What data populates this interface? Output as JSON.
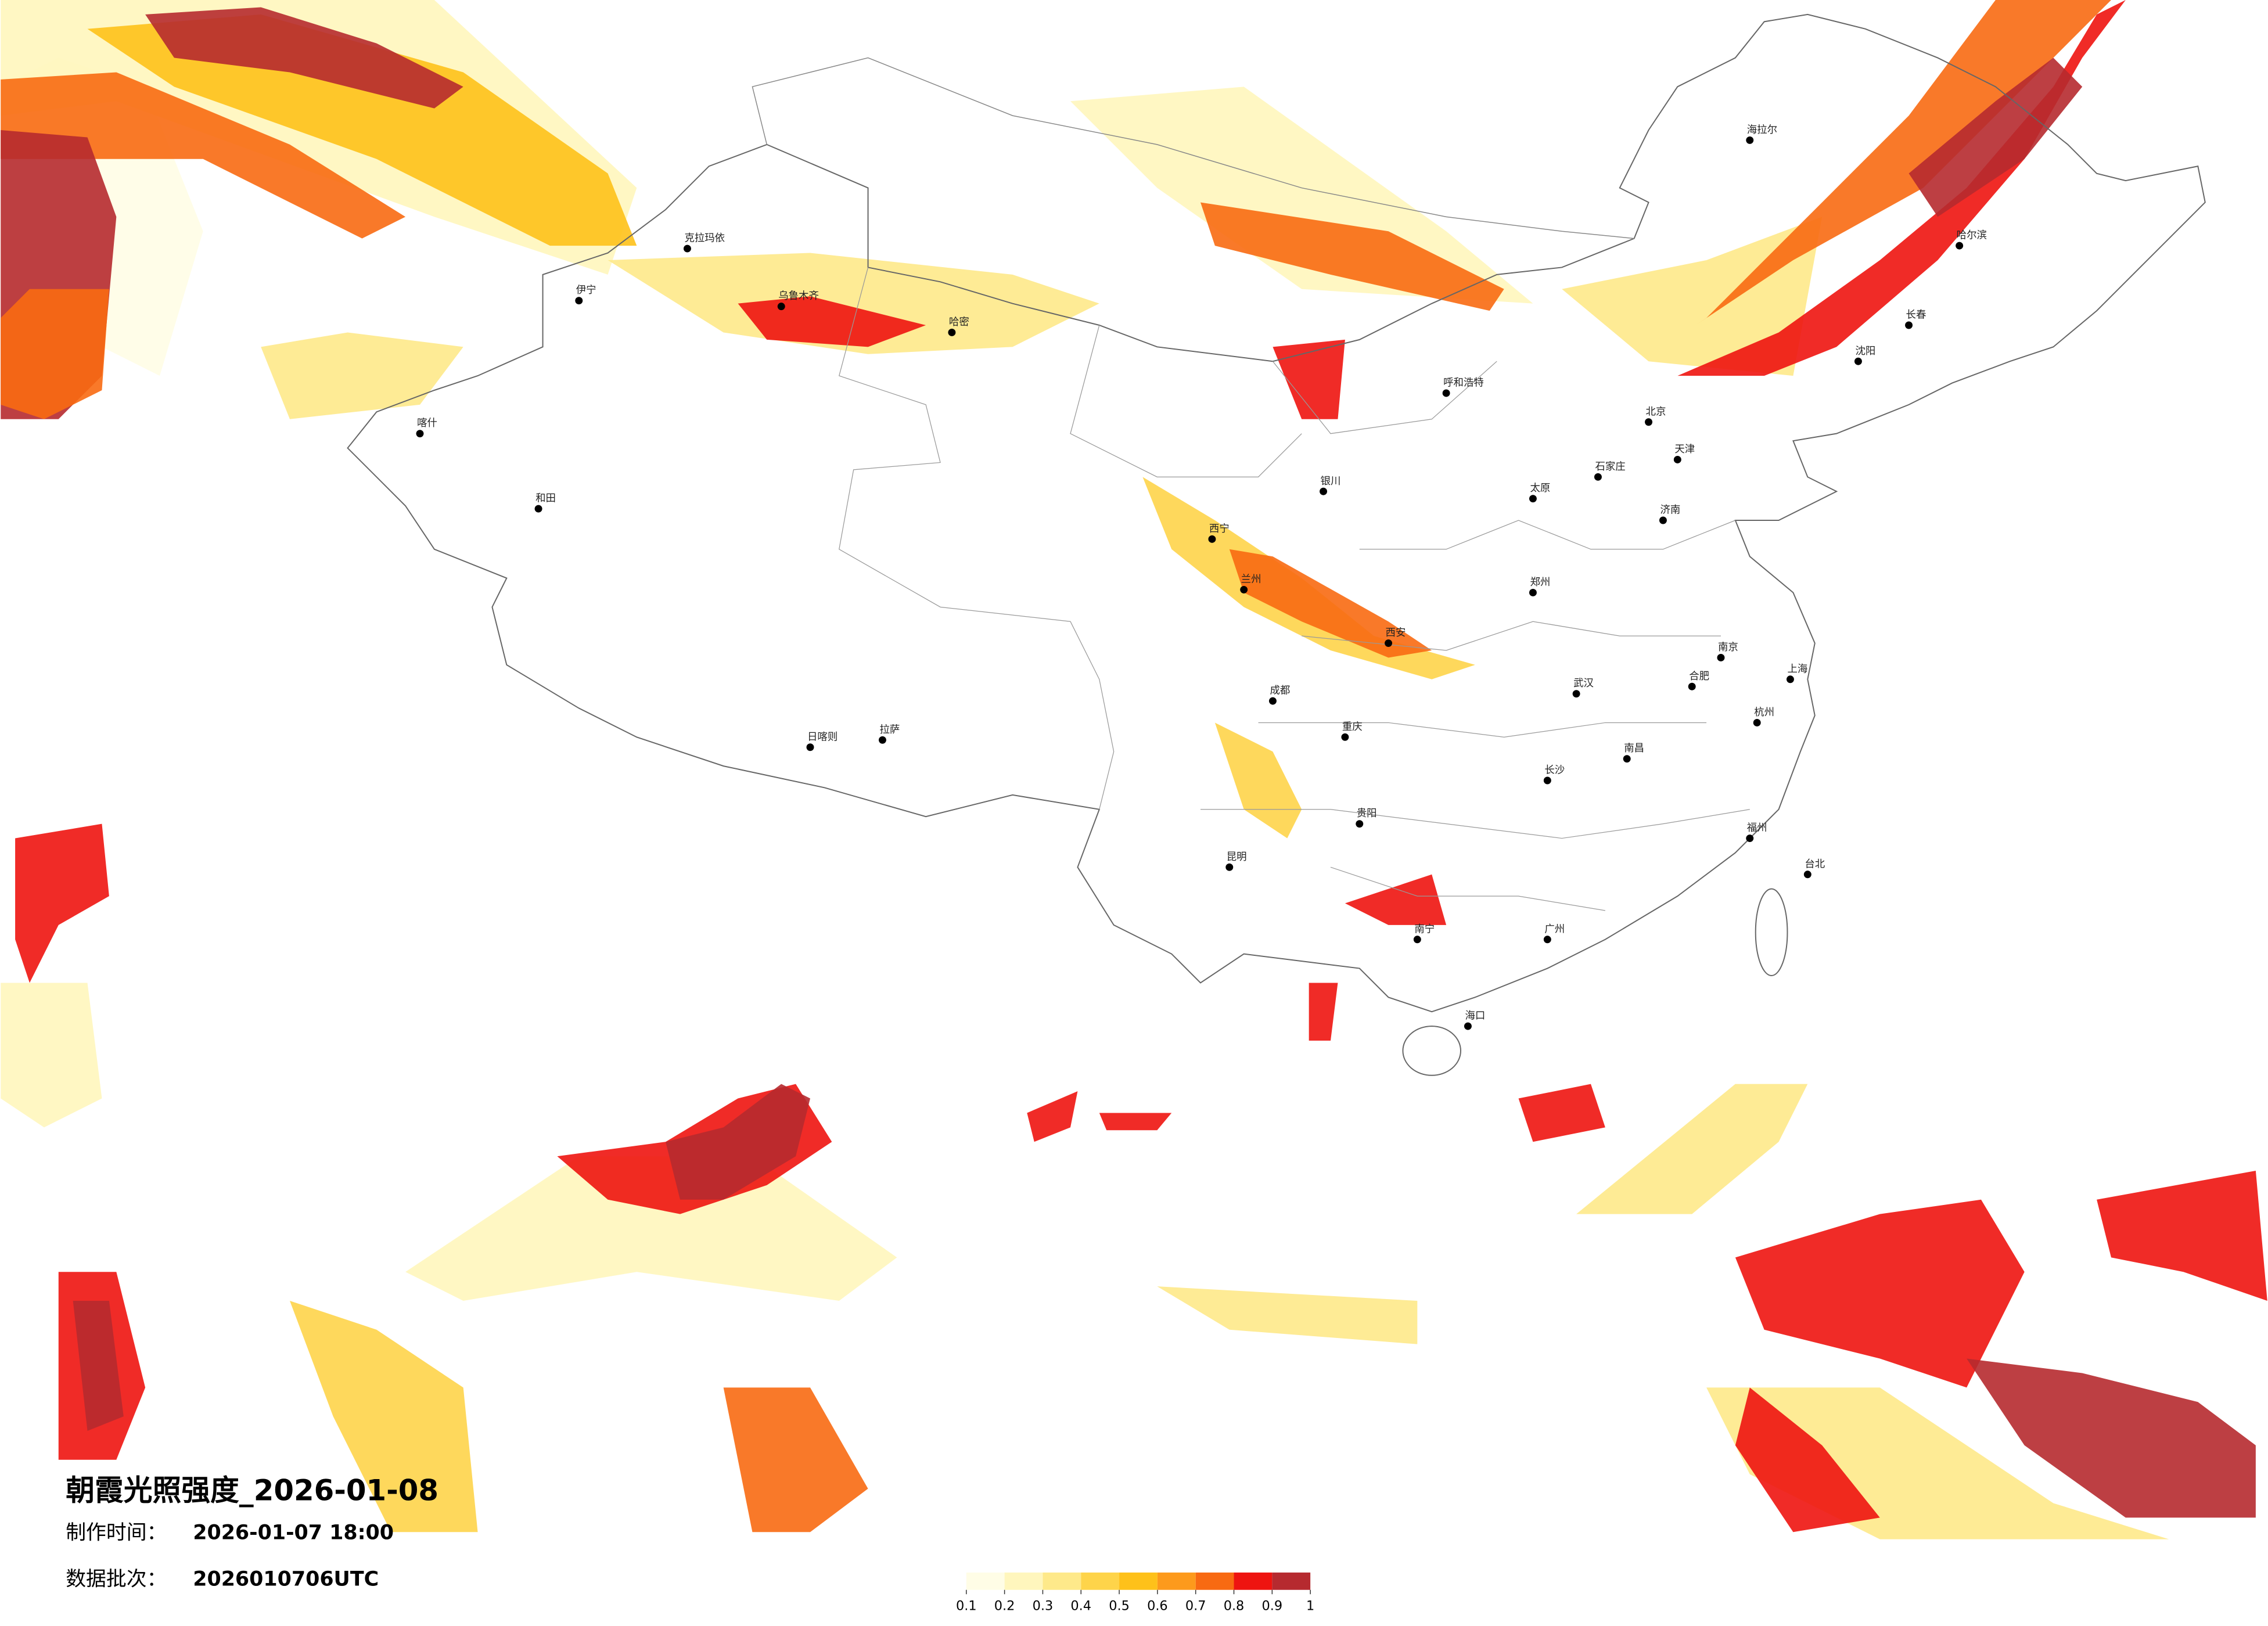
{
  "title": "朝霞光照强度_2026-01-08",
  "info": {
    "made_label": "制作时间：",
    "made_value": "2026-01-07 18:00",
    "batch_label": "数据批次：",
    "batch_value": "2026010706UTC"
  },
  "colorbar": {
    "ticks": [
      0.1,
      0.2,
      0.3,
      0.4,
      0.5,
      0.6,
      0.7,
      0.8,
      0.9,
      1
    ],
    "colors": [
      "#fffde6",
      "#fff6bd",
      "#fee98a",
      "#fed44a",
      "#fec11a",
      "#fd9a1c",
      "#f86a12",
      "#ee1410",
      "#b62a2f"
    ]
  },
  "cities": [
    "克拉玛依",
    "伊宁",
    "乌鲁木齐",
    "哈密",
    "和田",
    "喀什",
    "拉萨",
    "日喀则",
    "西宁",
    "兰州",
    "银川",
    "呼和浩特",
    "北京",
    "天津",
    "石家庄",
    "太原",
    "西安",
    "郑州",
    "济南",
    "南京",
    "上海",
    "杭州",
    "合肥",
    "武汉",
    "长沙",
    "南昌",
    "福州",
    "广州",
    "南宁",
    "贵阳",
    "昆明",
    "成都",
    "重庆",
    "海口",
    "台北",
    "哈尔滨",
    "长春",
    "沈阳",
    "海拉尔"
  ]
}
